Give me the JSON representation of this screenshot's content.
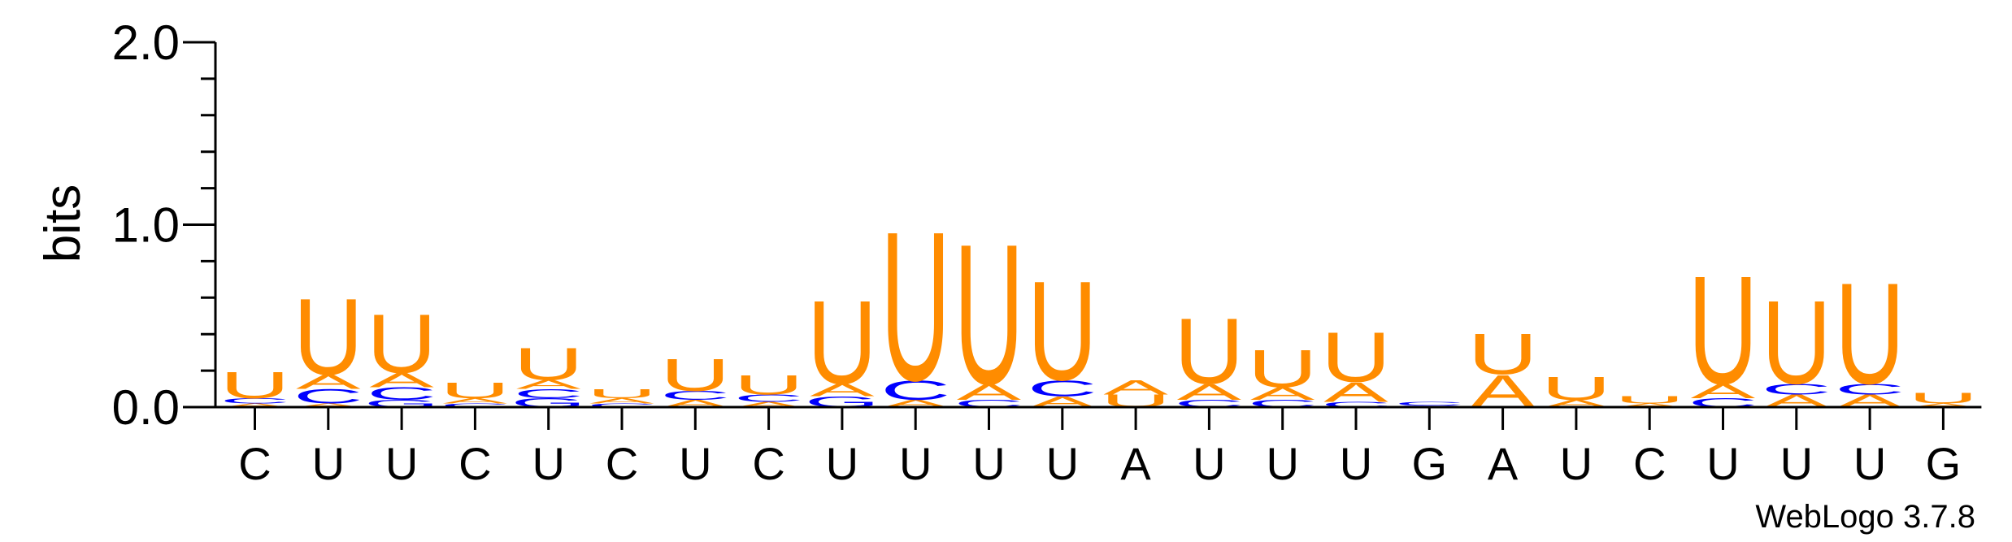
{
  "colors": {
    "U": "#ff8c00",
    "A": "#ff8c00",
    "C": "#0000ff",
    "G": "#0000ff",
    "axis": "#000000"
  },
  "credit": "WebLogo 3.7.8",
  "chart_data": {
    "type": "sequence-logo",
    "ylabel": "bits",
    "ylim": [
      0,
      2.0
    ],
    "yticks": [
      "0.0",
      "1.0",
      "2.0"
    ],
    "ytick_values": [
      0,
      1,
      2
    ],
    "xticks": [
      "C",
      "U",
      "U",
      "C",
      "U",
      "C",
      "U",
      "C",
      "U",
      "U",
      "U",
      "U",
      "A",
      "U",
      "U",
      "U",
      "G",
      "A",
      "U",
      "C",
      "U",
      "U",
      "U",
      "G"
    ],
    "positions": [
      [
        {
          "l": "A",
          "h": 0.02
        },
        {
          "l": "C",
          "h": 0.03
        },
        {
          "l": "U",
          "h": 0.15
        }
      ],
      [
        {
          "l": "A",
          "h": 0.02
        },
        {
          "l": "C",
          "h": 0.08
        },
        {
          "l": "A",
          "h": 0.08
        },
        {
          "l": "U",
          "h": 0.43
        }
      ],
      [
        {
          "l": "G",
          "h": 0.04
        },
        {
          "l": "C",
          "h": 0.07
        },
        {
          "l": "A",
          "h": 0.08
        },
        {
          "l": "U",
          "h": 0.33
        }
      ],
      [
        {
          "l": "C",
          "h": 0.02
        },
        {
          "l": "A",
          "h": 0.03
        },
        {
          "l": "U",
          "h": 0.09
        }
      ],
      [
        {
          "l": "G",
          "h": 0.05
        },
        {
          "l": "C",
          "h": 0.05
        },
        {
          "l": "A",
          "h": 0.05
        },
        {
          "l": "U",
          "h": 0.18
        }
      ],
      [
        {
          "l": "C",
          "h": 0.02
        },
        {
          "l": "A",
          "h": 0.03
        },
        {
          "l": "U",
          "h": 0.05
        }
      ],
      [
        {
          "l": "A",
          "h": 0.04
        },
        {
          "l": "C",
          "h": 0.05
        },
        {
          "l": "U",
          "h": 0.18
        }
      ],
      [
        {
          "l": "A",
          "h": 0.03
        },
        {
          "l": "C",
          "h": 0.04
        },
        {
          "l": "U",
          "h": 0.11
        }
      ],
      [
        {
          "l": "G",
          "h": 0.06
        },
        {
          "l": "A",
          "h": 0.07
        },
        {
          "l": "U",
          "h": 0.47
        }
      ],
      [
        {
          "l": "A",
          "h": 0.04
        },
        {
          "l": "C",
          "h": 0.11
        },
        {
          "l": "U",
          "h": 0.84
        }
      ],
      [
        {
          "l": "C",
          "h": 0.04
        },
        {
          "l": "A",
          "h": 0.09
        },
        {
          "l": "U",
          "h": 0.79
        }
      ],
      [
        {
          "l": "A",
          "h": 0.06
        },
        {
          "l": "C",
          "h": 0.09
        },
        {
          "l": "U",
          "h": 0.56
        }
      ],
      [
        {
          "l": "U",
          "h": 0.07
        },
        {
          "l": "A",
          "h": 0.08
        }
      ],
      [
        {
          "l": "C",
          "h": 0.04
        },
        {
          "l": "A",
          "h": 0.09
        },
        {
          "l": "U",
          "h": 0.37
        }
      ],
      [
        {
          "l": "C",
          "h": 0.04
        },
        {
          "l": "A",
          "h": 0.07
        },
        {
          "l": "U",
          "h": 0.21
        }
      ],
      [
        {
          "l": "C",
          "h": 0.03
        },
        {
          "l": "A",
          "h": 0.11
        },
        {
          "l": "U",
          "h": 0.28
        }
      ],
      [
        {
          "l": "G",
          "h": 0.01
        },
        {
          "l": "C",
          "h": 0.02
        }
      ],
      [
        {
          "l": "A",
          "h": 0.18
        },
        {
          "l": "U",
          "h": 0.23
        }
      ],
      [
        {
          "l": "A",
          "h": 0.04
        },
        {
          "l": "U",
          "h": 0.13
        }
      ],
      [
        {
          "l": "A",
          "h": 0.02
        },
        {
          "l": "U",
          "h": 0.04
        }
      ],
      [
        {
          "l": "C",
          "h": 0.05
        },
        {
          "l": "A",
          "h": 0.08
        },
        {
          "l": "U",
          "h": 0.61
        }
      ],
      [
        {
          "l": "A",
          "h": 0.07
        },
        {
          "l": "C",
          "h": 0.06
        },
        {
          "l": "U",
          "h": 0.47
        }
      ],
      [
        {
          "l": "A",
          "h": 0.07
        },
        {
          "l": "C",
          "h": 0.06
        },
        {
          "l": "U",
          "h": 0.57
        }
      ],
      [
        {
          "l": "A",
          "h": 0.02
        },
        {
          "l": "U",
          "h": 0.06
        }
      ]
    ]
  }
}
